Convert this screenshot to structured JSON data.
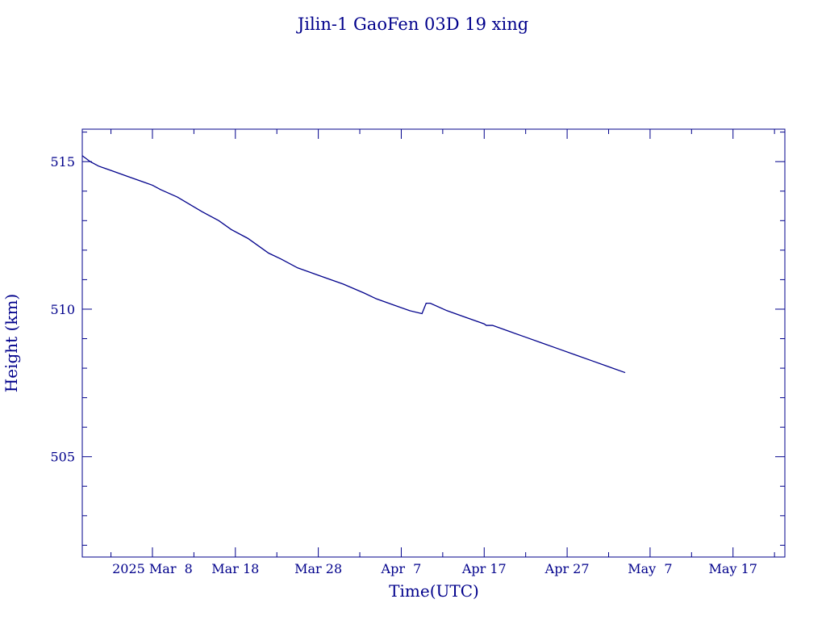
{
  "chart_data": {
    "type": "line",
    "title": "Jilin-1 GaoFen 03D 19 xing",
    "xlabel": "Time(UTC)",
    "ylabel": "Height (km)",
    "x_tick_labels": [
      {
        "date": "2025-03-08",
        "label": "2025 Mar  8"
      },
      {
        "date": "2025-03-18",
        "label": "Mar 18"
      },
      {
        "date": "2025-03-28",
        "label": "Mar 28"
      },
      {
        "date": "2025-04-07",
        "label": "Apr  7"
      },
      {
        "date": "2025-04-17",
        "label": "Apr 17"
      },
      {
        "date": "2025-04-27",
        "label": "Apr 27"
      },
      {
        "date": "2025-05-07",
        "label": "May  7"
      },
      {
        "date": "2025-05-17",
        "label": "May 17"
      }
    ],
    "y_ticks": [
      505,
      510,
      515
    ],
    "xlim": [
      "2025-02-27T13:00",
      "2025-05-23T06:00"
    ],
    "ylim": [
      501.6,
      516.1
    ],
    "grid": false,
    "color": "#00008b",
    "series": [
      {
        "x": [
          "2025-02-27T13:00",
          "2025-02-28T12:00",
          "2025-03-01T12:00",
          "2025-03-03T00:00",
          "2025-03-05T00:00",
          "2025-03-07T00:00",
          "2025-03-08T00:00",
          "2025-03-09T00:00",
          "2025-03-11T00:00",
          "2025-03-12T12:00",
          "2025-03-14T00:00",
          "2025-03-16T00:00",
          "2025-03-17T12:00",
          "2025-03-19T12:00",
          "2025-03-21T00:00",
          "2025-03-22T00:00",
          "2025-03-23T12:00",
          "2025-03-25T12:00",
          "2025-03-27T12:00",
          "2025-03-29T00:00",
          "2025-03-31T00:00",
          "2025-04-02T12:00",
          "2025-04-04T00:00",
          "2025-04-06T00:00",
          "2025-04-08T00:00",
          "2025-04-09T12:00",
          "2025-04-10T00:00",
          "2025-04-10T12:00",
          "2025-04-12T12:00",
          "2025-04-14T12:00",
          "2025-04-16T12:00",
          "2025-04-17T00:00",
          "2025-04-17T06:00",
          "2025-04-18T00:00",
          "2025-04-20T00:00",
          "2025-04-22T00:00",
          "2025-04-24T00:00",
          "2025-04-26T00:00",
          "2025-04-28T00:00",
          "2025-04-30T00:00",
          "2025-05-02T00:00",
          "2025-05-04T00:00"
        ],
        "values": [
          515.2,
          515.0,
          514.85,
          514.7,
          514.5,
          514.3,
          514.2,
          514.05,
          513.8,
          513.55,
          513.3,
          513.0,
          512.7,
          512.4,
          512.1,
          511.9,
          511.7,
          511.4,
          511.2,
          511.05,
          510.85,
          510.55,
          510.35,
          510.15,
          509.95,
          509.85,
          510.2,
          510.2,
          509.95,
          509.75,
          509.55,
          509.5,
          509.45,
          509.45,
          509.25,
          509.05,
          508.85,
          508.65,
          508.45,
          508.25,
          508.05,
          507.85
        ]
      }
    ]
  }
}
